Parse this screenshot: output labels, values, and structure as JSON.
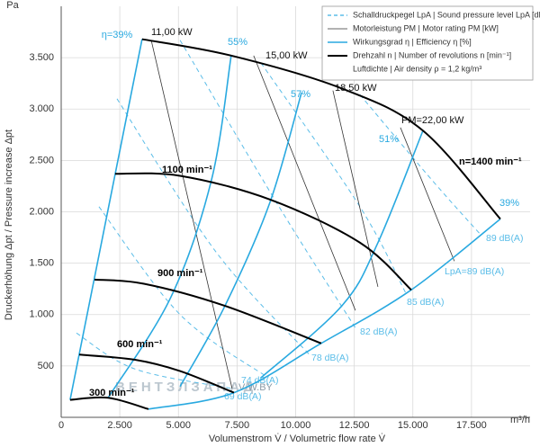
{
  "chart_data": {
    "type": "line",
    "y_unit": "Pa",
    "x_unit": "m³/h",
    "x_label": "Volumenstrom V̇ / Volumetric flow rate V̇",
    "y_label": "Druckerhöhung Δpt / Pressure increase Δpt",
    "xlim": [
      0,
      20000
    ],
    "ylim": [
      0,
      4000
    ],
    "xticks": [
      0,
      {
        "value": 2500,
        "label": "2.500"
      },
      {
        "value": 5000,
        "label": "5.000"
      },
      {
        "value": 7500,
        "label": "7.500"
      },
      {
        "value": 10000,
        "label": "10.000"
      },
      {
        "value": 12500,
        "label": "12.500"
      },
      {
        "value": 15000,
        "label": "15.000"
      },
      {
        "value": 17500,
        "label": "17.500"
      }
    ],
    "yticks": [
      500,
      {
        "value": 1000,
        "label": "1.000"
      },
      {
        "value": 1500,
        "label": "1.500"
      },
      {
        "value": 2000,
        "label": "2.000"
      },
      {
        "value": 2500,
        "label": "2.500"
      },
      {
        "value": 3000,
        "label": "3.000"
      },
      {
        "value": 3500,
        "label": "3.500"
      }
    ],
    "grid": true,
    "legend_position": "top-right",
    "legend": [
      {
        "label": "Schalldruckpegel LpA | Sound pressure level LpA [dB(A)]",
        "color": "#5bbde8",
        "dashed": true
      },
      {
        "label": "Motorleistung PM | Motor rating PM [kW]",
        "color": "#333333",
        "dashed": false
      },
      {
        "label": "Wirkungsgrad η | Efficiency η [%]",
        "color": "#29a9e0",
        "dashed": false
      },
      {
        "label": "Drehzahl n | Number of revolutions n [min⁻¹]",
        "color": "#000000",
        "dashed": false
      }
    ],
    "legend_note": "Luftdichte | Air density ρ = 1,2 kg/m³",
    "sound_series": [
      {
        "name": "69 dB(A)",
        "x": [
          650,
          3150,
          7290
        ],
        "values": [
          820,
          470,
          280
        ]
      },
      {
        "name": "74 dB(A)",
        "x": [
          1610,
          5070,
          8830
        ],
        "values": [
          2050,
          1000,
          385
        ]
      },
      {
        "name": "78 dB(A)",
        "x": [
          2380,
          6600,
          10630
        ],
        "values": [
          3100,
          1610,
          600
        ]
      },
      {
        "name": "82 dB(A)",
        "x": [
          5070,
          9290,
          12550
        ],
        "values": [
          3670,
          2050,
          870
        ]
      },
      {
        "name": "85 dB(A)",
        "x": [
          8520,
          12740,
          14740
        ],
        "values": [
          3450,
          2050,
          1190
        ]
      },
      {
        "name": "89 dB(A)",
        "x": [
          12740,
          15810,
          17920
        ],
        "values": [
          3140,
          2310,
          1770
        ]
      }
    ],
    "sound_annotation": "LpA=89 dB(A)",
    "motor_series": [
      {
        "name": "11,00 kW",
        "x": [
          3840,
          7290
        ],
        "values": [
          3670,
          280
        ]
      },
      {
        "name": "15,00 kW",
        "x": [
          8210,
          12550
        ],
        "values": [
          3520,
          1040
        ]
      },
      {
        "name": "18,50 kW",
        "x": [
          11590,
          13510
        ],
        "values": [
          3180,
          1270
        ]
      },
      {
        "name": "PM=22,00 kW",
        "x": [
          14470,
          16770
        ],
        "values": [
          2820,
          1520
        ]
      }
    ],
    "efficiency_series": [
      {
        "name": "η=39%",
        "x": [
          3450,
          380
        ],
        "values": [
          3680,
          170
        ]
      },
      {
        "name": "55%",
        "x": [
          7250,
          6410,
          4680,
          2000
        ],
        "values": [
          3520,
          2310,
          1170,
          190
        ]
      },
      {
        "name": "57%",
        "x": [
          10250,
          8900,
          6985,
          5070
        ],
        "values": [
          3160,
          2090,
          1085,
          300
        ]
      },
      {
        "name": "51%",
        "x": [
          15430,
          13510,
          11970,
          8520
        ],
        "values": [
          2790,
          1700,
          1085,
          385
        ]
      },
      {
        "name": "39%",
        "x": [
          3720,
          7370,
          11090,
          14930,
          18730
        ],
        "values": [
          80,
          240,
          720,
          1240,
          1930
        ]
      }
    ],
    "speed_series": [
      {
        "name": "n=1400 min⁻¹",
        "x": [
          3450,
          7250,
          11970,
          15430,
          18730
        ],
        "values": [
          3680,
          3520,
          3200,
          2790,
          1930
        ]
      },
      {
        "name": "1100 min⁻¹",
        "x": [
          2300,
          5070,
          8900,
          12740,
          14930
        ],
        "values": [
          2370,
          2350,
          2120,
          1700,
          1240
        ]
      },
      {
        "name": "900 min⁻¹",
        "x": [
          1420,
          3530,
          6985,
          11090
        ],
        "values": [
          1340,
          1300,
          1085,
          720
        ]
      },
      {
        "name": "600 min⁻¹",
        "x": [
          770,
          3150,
          5070,
          7370
        ],
        "values": [
          610,
          560,
          450,
          240
        ]
      },
      {
        "name": "300 min⁻¹",
        "x": [
          380,
          2000,
          3720
        ],
        "values": [
          170,
          190,
          80
        ]
      }
    ],
    "watermark": "ВЕНТЗЛЗАПАД",
    "watermark_url": "V-W.BY"
  }
}
